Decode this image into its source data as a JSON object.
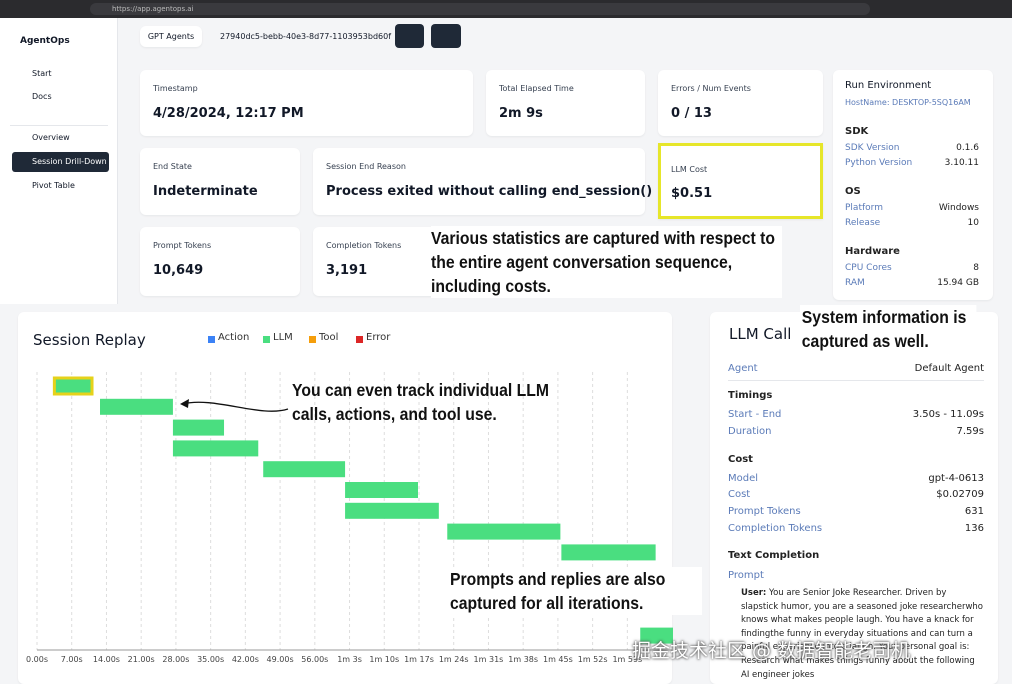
{
  "browser": {
    "url": "https://app.agentops.ai"
  },
  "sidebar": {
    "brand": "AgentOps",
    "nav": [
      "Start",
      "Docs",
      "Overview",
      "Session Drill-Down",
      "Pivot Table"
    ],
    "active": 3
  },
  "toolbar": {
    "project": "GPT Agents",
    "session_id": "27940dc5-bebb-40e3-8d77-1103953bd60f"
  },
  "stats": [
    {
      "label": "Timestamp",
      "value": "4/28/2024, 12:17 PM"
    },
    {
      "label": "Total Elapsed Time",
      "value": "2m 9s"
    },
    {
      "label": "Errors / Num Events",
      "value": "0 / 13"
    },
    {
      "label": "End State",
      "value": "Indeterminate"
    },
    {
      "label": "Session End Reason",
      "value": "Process exited without calling end_session()"
    },
    {
      "label": "LLM Cost",
      "value": "$0.51"
    },
    {
      "label": "Prompt Tokens",
      "value": "10,649"
    },
    {
      "label": "Completion Tokens",
      "value": "3,191"
    }
  ],
  "highlighted_stat": 5,
  "run_environment": {
    "title": "Run Environment",
    "hostname": "HostName: DESKTOP-5SQ16AM",
    "sections": [
      {
        "title": "SDK",
        "rows": [
          [
            "SDK Version",
            "0.1.6"
          ],
          [
            "Python Version",
            "3.10.11"
          ]
        ]
      },
      {
        "title": "OS",
        "rows": [
          [
            "Platform",
            "Windows"
          ],
          [
            "Release",
            "10"
          ]
        ]
      },
      {
        "title": "Hardware",
        "rows": [
          [
            "CPU Cores",
            "8"
          ],
          [
            "RAM",
            "15.94 GB"
          ]
        ]
      }
    ]
  },
  "session_replay": {
    "title": "Session Replay",
    "legend": [
      {
        "name": "Action",
        "color": "#3b82f6"
      },
      {
        "name": "LLM",
        "color": "#4ade80"
      },
      {
        "name": "Tool",
        "color": "#f59e0b"
      },
      {
        "name": "Error",
        "color": "#dc2626"
      }
    ],
    "events": [
      {
        "start": 3.5,
        "end": 11.09,
        "color": "#4ade80"
      },
      {
        "start": 12.7,
        "end": 27.4,
        "color": "#4ade80"
      },
      {
        "start": 27.4,
        "end": 37.7,
        "color": "#4ade80"
      },
      {
        "start": 27.4,
        "end": 44.6,
        "color": "#4ade80"
      },
      {
        "start": 45.6,
        "end": 62.1,
        "color": "#4ade80"
      },
      {
        "start": 62.1,
        "end": 76.8,
        "color": "#4ade80"
      },
      {
        "start": 62.1,
        "end": 81.0,
        "color": "#4ade80"
      },
      {
        "start": 82.7,
        "end": 105.5,
        "color": "#4ade80"
      },
      {
        "start": 105.7,
        "end": 124.7,
        "color": "#4ade80"
      },
      {
        "start": 121.6,
        "end": 128.2,
        "color": "#4ade80"
      }
    ],
    "selected": 0,
    "xlim": [
      0,
      128
    ],
    "xticks": [
      {
        "value": 0,
        "label": "0.00s"
      },
      {
        "value": 7,
        "label": "7.00s"
      },
      {
        "value": 14,
        "label": "14.00s"
      },
      {
        "value": 21,
        "label": "21.00s"
      },
      {
        "value": 28,
        "label": "28.00s"
      },
      {
        "value": 35,
        "label": "35.00s"
      },
      {
        "value": 42,
        "label": "42.00s"
      },
      {
        "value": 49,
        "label": "49.00s"
      },
      {
        "value": 56,
        "label": "56.00s"
      },
      {
        "value": 63,
        "label": "1m 3s"
      },
      {
        "value": 70,
        "label": "1m 10s"
      },
      {
        "value": 77,
        "label": "1m 17s"
      },
      {
        "value": 84,
        "label": "1m 24s"
      },
      {
        "value": 91,
        "label": "1m 31s"
      },
      {
        "value": 98,
        "label": "1m 38s"
      },
      {
        "value": 105,
        "label": "1m 45s"
      },
      {
        "value": 112,
        "label": "1m 52s"
      },
      {
        "value": 119,
        "label": "1m 59s"
      }
    ]
  },
  "llm_call": {
    "title": "LLM Call",
    "agent": [
      "Agent",
      "Default Agent"
    ],
    "sections": [
      {
        "title": "Timings",
        "rows": [
          [
            "Start - End",
            "3.50s - 11.09s"
          ],
          [
            "Duration",
            "7.59s"
          ]
        ]
      },
      {
        "title": "Cost",
        "rows": [
          [
            "Model",
            "gpt-4-0613"
          ],
          [
            "Cost",
            "$0.02709"
          ],
          [
            "Prompt Tokens",
            "631"
          ],
          [
            "Completion Tokens",
            "136"
          ]
        ]
      }
    ],
    "completion_title": "Text Completion",
    "prompt_label": "Prompt",
    "prompt_role": "User:",
    "prompt_text": "You are Senior Joke Researcher. Driven by slapstick humor, you are a seasoned joke researcherwho knows what makes people laugh. You have a knack for findingthe funny in everyday situations and can turn a painful experience into a laugh. Your personal goal is: Research what makes things funny about the following AI engineer jokes"
  },
  "annotations": [
    "Various statistics are captured with respect to the entire agent conversation sequence, including costs.",
    "System information is captured as well.",
    "You can even track individual LLM calls, actions, and tool use.",
    "Prompts and replies are also captured for all iterations."
  ],
  "watermark": "掘金技术社区 @ 数据智能老司机"
}
